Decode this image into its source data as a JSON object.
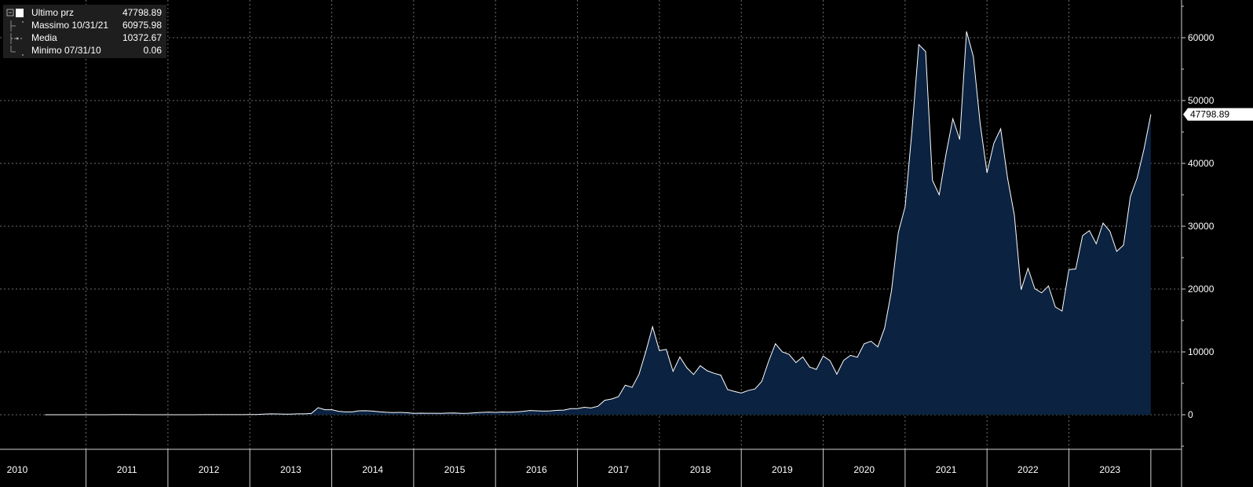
{
  "legend": {
    "items": [
      {
        "label": "Ultimo prz",
        "value": "47798.89"
      },
      {
        "label": "Massimo 10/31/21",
        "value": "60975.98"
      },
      {
        "label": "Media",
        "value": "10372.67"
      },
      {
        "label": "Minimo 07/31/10",
        "value": "0.06"
      }
    ]
  },
  "last_value_label": "47798.89",
  "colors": {
    "background": "#000000",
    "area_fill": "#0b2240",
    "line": "#ffffff",
    "grid": "#6e6e6e",
    "legend_bg": "#1e1e1e"
  },
  "chart_data": {
    "type": "area",
    "title": "",
    "xlabel": "",
    "ylabel": "",
    "ylim": [
      -5500,
      66000
    ],
    "y_ticks": [
      0,
      10000,
      20000,
      30000,
      40000,
      50000,
      60000
    ],
    "grid": true,
    "legend_position": "top-left",
    "x_tick_labels": [
      "2010",
      "2011",
      "2012",
      "2013",
      "2014",
      "2015",
      "2016",
      "2017",
      "2018",
      "2019",
      "2020",
      "2021",
      "2022",
      "2023"
    ],
    "x": [
      "2010-07",
      "2010-08",
      "2010-09",
      "2010-10",
      "2010-11",
      "2010-12",
      "2011-01",
      "2011-02",
      "2011-03",
      "2011-04",
      "2011-05",
      "2011-06",
      "2011-07",
      "2011-08",
      "2011-09",
      "2011-10",
      "2011-11",
      "2011-12",
      "2012-01",
      "2012-02",
      "2012-03",
      "2012-04",
      "2012-05",
      "2012-06",
      "2012-07",
      "2012-08",
      "2012-09",
      "2012-10",
      "2012-11",
      "2012-12",
      "2013-01",
      "2013-02",
      "2013-03",
      "2013-04",
      "2013-05",
      "2013-06",
      "2013-07",
      "2013-08",
      "2013-09",
      "2013-10",
      "2013-11",
      "2013-12",
      "2014-01",
      "2014-02",
      "2014-03",
      "2014-04",
      "2014-05",
      "2014-06",
      "2014-07",
      "2014-08",
      "2014-09",
      "2014-10",
      "2014-11",
      "2014-12",
      "2015-01",
      "2015-02",
      "2015-03",
      "2015-04",
      "2015-05",
      "2015-06",
      "2015-07",
      "2015-08",
      "2015-09",
      "2015-10",
      "2015-11",
      "2015-12",
      "2016-01",
      "2016-02",
      "2016-03",
      "2016-04",
      "2016-05",
      "2016-06",
      "2016-07",
      "2016-08",
      "2016-09",
      "2016-10",
      "2016-11",
      "2016-12",
      "2017-01",
      "2017-02",
      "2017-03",
      "2017-04",
      "2017-05",
      "2017-06",
      "2017-07",
      "2017-08",
      "2017-09",
      "2017-10",
      "2017-11",
      "2017-12",
      "2018-01",
      "2018-02",
      "2018-03",
      "2018-04",
      "2018-05",
      "2018-06",
      "2018-07",
      "2018-08",
      "2018-09",
      "2018-10",
      "2018-11",
      "2018-12",
      "2019-01",
      "2019-02",
      "2019-03",
      "2019-04",
      "2019-05",
      "2019-06",
      "2019-07",
      "2019-08",
      "2019-09",
      "2019-10",
      "2019-11",
      "2019-12",
      "2020-01",
      "2020-02",
      "2020-03",
      "2020-04",
      "2020-05",
      "2020-06",
      "2020-07",
      "2020-08",
      "2020-09",
      "2020-10",
      "2020-11",
      "2020-12",
      "2021-01",
      "2021-02",
      "2021-03",
      "2021-04",
      "2021-05",
      "2021-06",
      "2021-07",
      "2021-08",
      "2021-09",
      "2021-10",
      "2021-11",
      "2021-12",
      "2022-01",
      "2022-02",
      "2022-03",
      "2022-04",
      "2022-05",
      "2022-06",
      "2022-07",
      "2022-08",
      "2022-09",
      "2022-10",
      "2022-11",
      "2022-12",
      "2023-01",
      "2023-02",
      "2023-03",
      "2023-04",
      "2023-05",
      "2023-06",
      "2023-07",
      "2023-08",
      "2023-09",
      "2023-10",
      "2023-11",
      "2023-12",
      "2024-01"
    ],
    "series": [
      {
        "values": [
          0.06,
          0.07,
          0.06,
          0.2,
          0.2,
          0.3,
          0.5,
          0.9,
          0.8,
          3,
          9,
          17,
          14,
          8,
          5,
          3,
          3,
          4,
          6,
          5,
          5,
          5,
          5,
          7,
          9,
          10,
          12,
          11,
          12,
          13,
          20,
          33,
          93,
          139,
          129,
          97,
          106,
          141,
          141,
          204,
          1130,
          800,
          800,
          550,
          450,
          450,
          620,
          640,
          580,
          480,
          390,
          340,
          380,
          320,
          220,
          250,
          240,
          240,
          230,
          260,
          285,
          230,
          235,
          310,
          380,
          430,
          370,
          440,
          415,
          450,
          530,
          670,
          620,
          570,
          610,
          700,
          740,
          960,
          970,
          1190,
          1080,
          1350,
          2300,
          2500,
          2870,
          4700,
          4350,
          6400,
          10000,
          14000,
          10200,
          10400,
          6900,
          9200,
          7500,
          6400,
          7800,
          7000,
          6600,
          6300,
          4000,
          3700,
          3450,
          3850,
          4100,
          5300,
          8500,
          11300,
          10000,
          9600,
          8300,
          9200,
          7600,
          7200,
          9350,
          8600,
          6450,
          8650,
          9450,
          9150,
          11300,
          11700,
          10800,
          13800,
          19700,
          29000,
          33100,
          45200,
          58900,
          57800,
          37300,
          35000,
          41500,
          47100,
          43800,
          61000,
          57000,
          46300,
          38500,
          43200,
          45500,
          37700,
          31800,
          19900,
          23300,
          20050,
          19400,
          20500,
          17150,
          16500,
          23100,
          23200,
          28500,
          29300,
          27200,
          30500,
          29200,
          26000,
          27000,
          34700,
          37700,
          42300,
          47798.89
        ]
      }
    ]
  }
}
